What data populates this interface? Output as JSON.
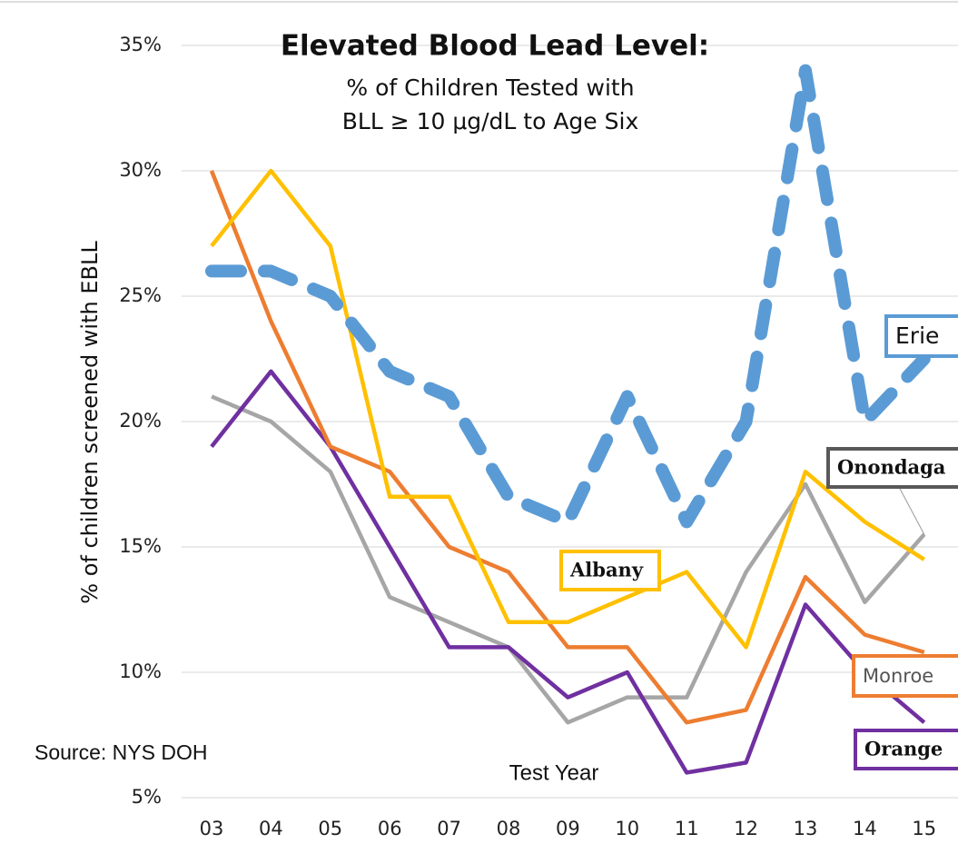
{
  "chart_data": {
    "type": "line",
    "title": "Elevated Blood Lead Level:",
    "subtitle": [
      "% of Children Tested with",
      "BLL ≥ 10 μg/dL to Age Six"
    ],
    "x_label": "Test Year",
    "y_label": "% of children screened with EBLL",
    "annotation": "Source: NYS DOH",
    "categories": [
      "03",
      "04",
      "05",
      "06",
      "07",
      "08",
      "09",
      "10",
      "11",
      "12",
      "13",
      "14",
      "15"
    ],
    "ylim": [
      5,
      35
    ],
    "yticks": [
      {
        "value": 5,
        "label": "5%"
      },
      {
        "value": 10,
        "label": "10%"
      },
      {
        "value": 15,
        "label": "15%"
      },
      {
        "value": 20,
        "label": "20%"
      },
      {
        "value": 25,
        "label": "25%"
      },
      {
        "value": 30,
        "label": "30%"
      },
      {
        "value": 35,
        "label": "35%"
      }
    ],
    "grid": true,
    "series": [
      {
        "name": "Erie",
        "color": "#5b9bd5",
        "dashed": true,
        "values": [
          26,
          26,
          25,
          22,
          21,
          17,
          16,
          21,
          16,
          20,
          34,
          20,
          22.5
        ]
      },
      {
        "name": "Albany",
        "color": "#ffc000",
        "values": [
          27,
          30,
          27,
          17,
          17,
          12,
          12,
          13,
          14,
          11,
          18,
          16,
          14.5
        ]
      },
      {
        "name": "Monroe",
        "color": "#ed7d31",
        "values": [
          30,
          24,
          19,
          18,
          15,
          14,
          11,
          11,
          8,
          8.5,
          13.8,
          11.5,
          10.8
        ]
      },
      {
        "name": "Orange",
        "color": "#7030a0",
        "values": [
          19,
          22,
          19,
          15,
          11,
          11,
          9,
          10,
          6,
          6.4,
          12.7,
          10,
          8
        ]
      },
      {
        "name": "Onondaga",
        "color": "#a6a6a6",
        "values": [
          21,
          20,
          18,
          13,
          12,
          11,
          8,
          9,
          9,
          14,
          17.5,
          12.8,
          15.5
        ]
      }
    ]
  }
}
